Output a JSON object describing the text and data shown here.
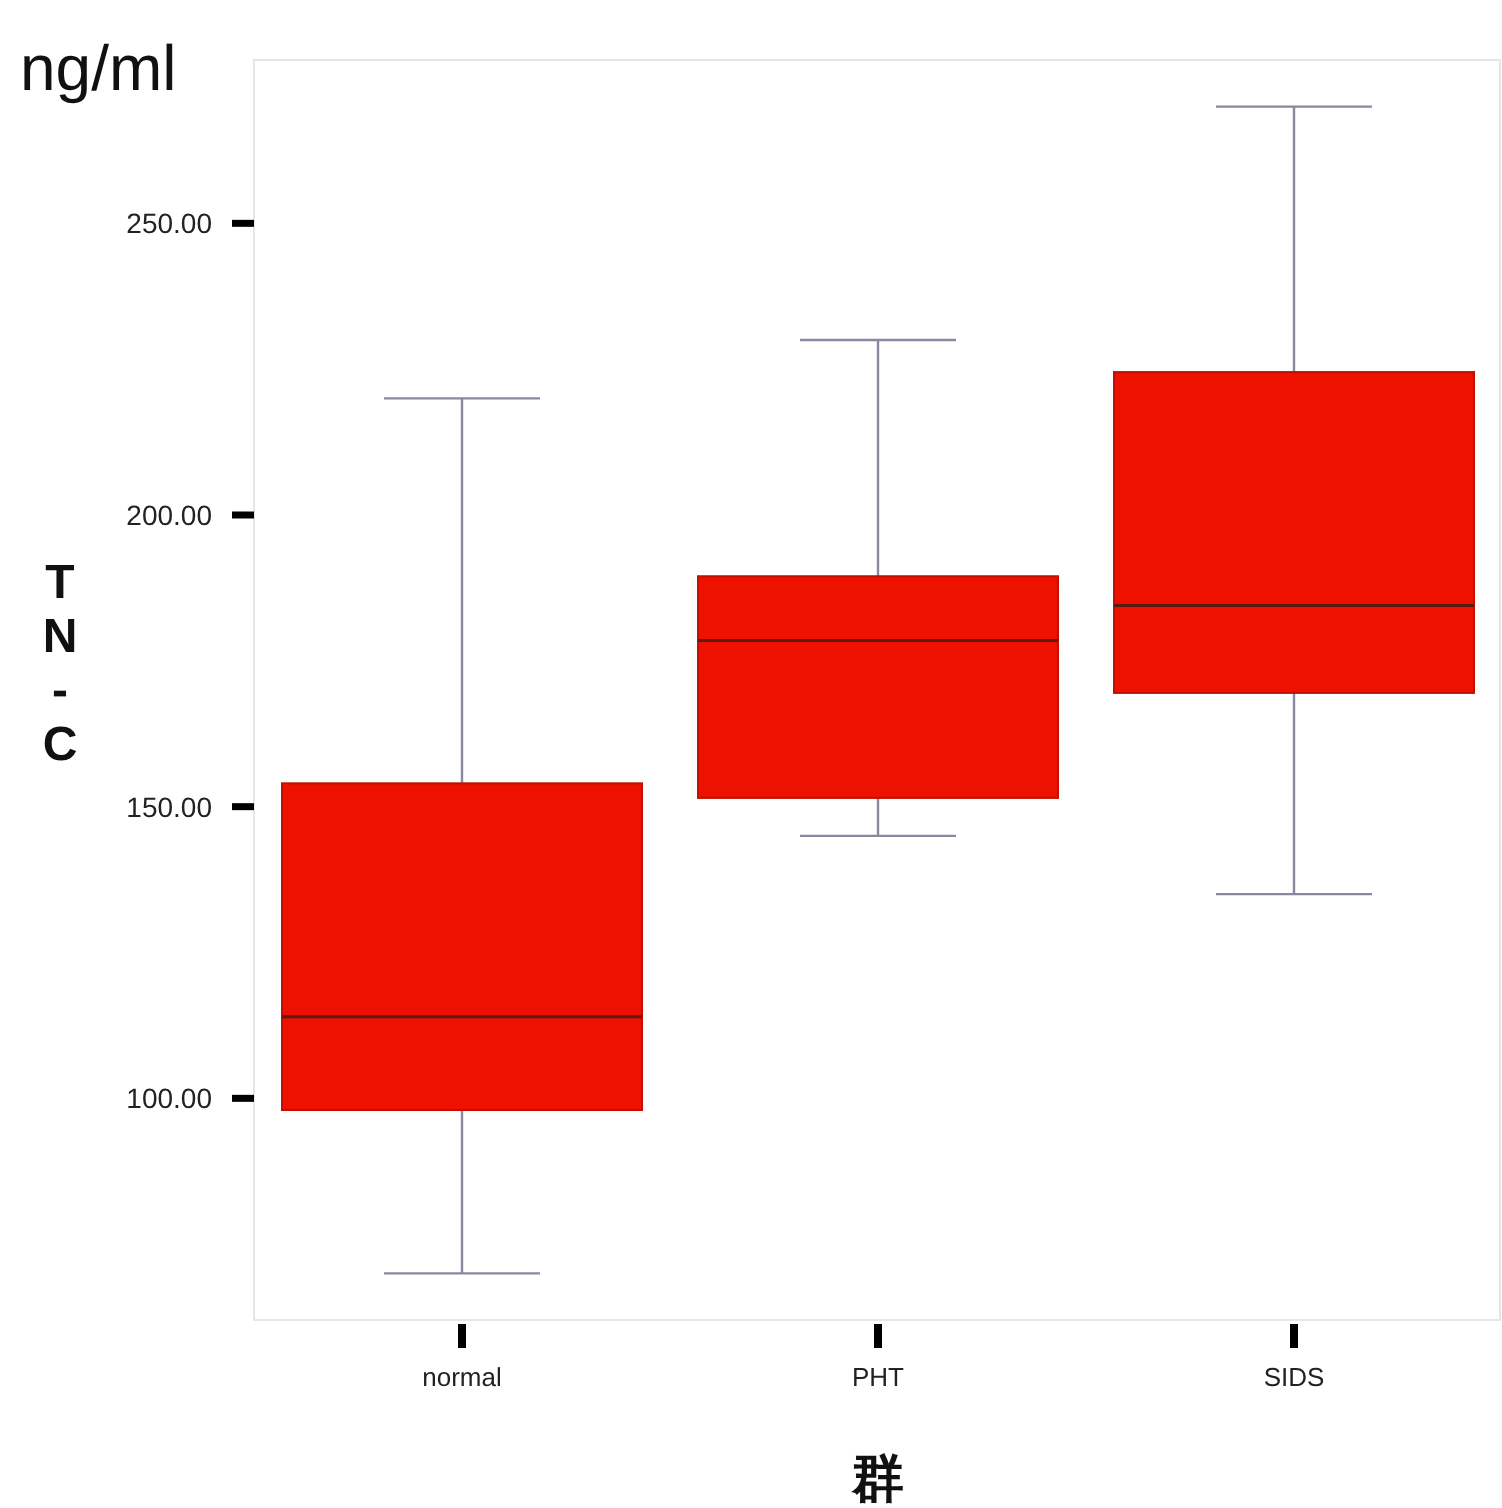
{
  "chart_data": {
    "type": "box",
    "title": "ng/ml",
    "ylabel": "TN-C",
    "xlabel": "群",
    "categories": [
      "normal",
      "PHT",
      "SIDS"
    ],
    "boxes": [
      {
        "low": 70,
        "q1": 98,
        "median": 114,
        "q3": 154,
        "high": 220
      },
      {
        "low": 145,
        "q1": 151.5,
        "median": 178.5,
        "q3": 189.5,
        "high": 230
      },
      {
        "low": 135,
        "q1": 169.5,
        "median": 184.5,
        "q3": 224.5,
        "high": 270
      }
    ],
    "color": "#ee1100",
    "ylim": [
      62,
      278
    ],
    "yticks": [
      {
        "value": 100,
        "label": "100.00"
      },
      {
        "value": 150,
        "label": "150.00"
      },
      {
        "value": 200,
        "label": "200.00"
      },
      {
        "value": 250,
        "label": "250.00"
      }
    ],
    "grid": false
  }
}
